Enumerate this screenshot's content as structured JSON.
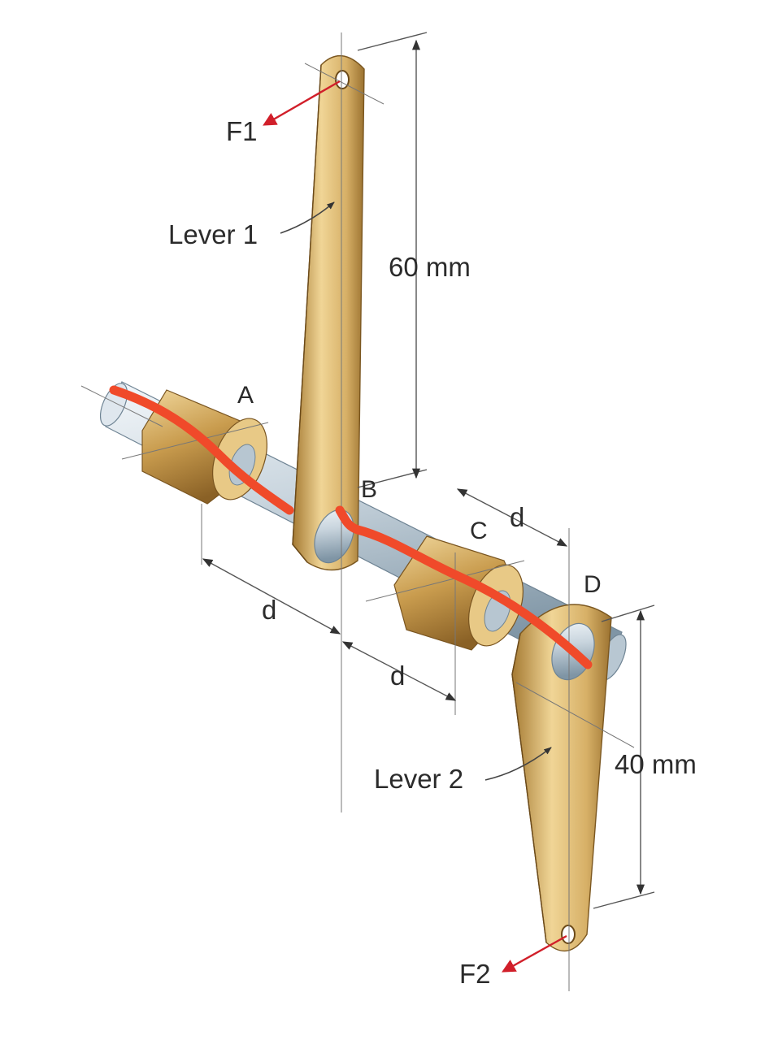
{
  "labels": {
    "force1": "F1",
    "force2": "F2",
    "lever1": "Lever 1",
    "lever2": "Lever 2",
    "length1": "60 mm",
    "length2": "40 mm",
    "point_a": "A",
    "point_b": "B",
    "point_c": "C",
    "point_d": "D",
    "spacing_ab": "d",
    "spacing_bc": "d",
    "spacing_cd": "d"
  },
  "colors": {
    "shaft_light": "#e6edf2",
    "shaft_dark": "#8fa3b2",
    "bronze_light": "#f1d79a",
    "bronze_dark": "#9a6f2c",
    "force_arrow": "#d11f2a",
    "annotation": "#f04a2a"
  }
}
